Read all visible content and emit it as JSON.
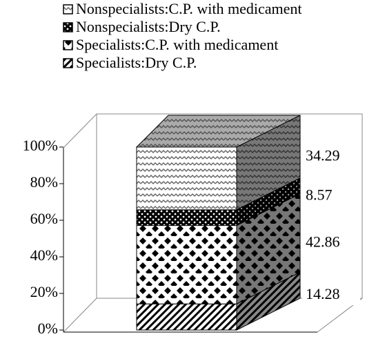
{
  "chart_data": {
    "type": "bar3d_stacked_percent",
    "categories": [
      null
    ],
    "series": [
      {
        "name": "Specialists:Dry C.P.",
        "values": [
          14.28
        ]
      },
      {
        "name": "Specialists:C.P. with medicament",
        "values": [
          42.86
        ]
      },
      {
        "name": "Nonspecialists:Dry C.P.",
        "values": [
          8.57
        ]
      },
      {
        "name": "Nonspecialists:C.P. with medicament",
        "values": [
          34.29
        ]
      }
    ],
    "ylim": [
      0,
      100
    ],
    "yticks": [
      {
        "value": 0,
        "label": "0%"
      },
      {
        "value": 20,
        "label": "20%"
      },
      {
        "value": 40,
        "label": "40%"
      },
      {
        "value": 60,
        "label": "60%"
      },
      {
        "value": 80,
        "label": "80%"
      },
      {
        "value": 100,
        "label": "100%"
      }
    ]
  }
}
